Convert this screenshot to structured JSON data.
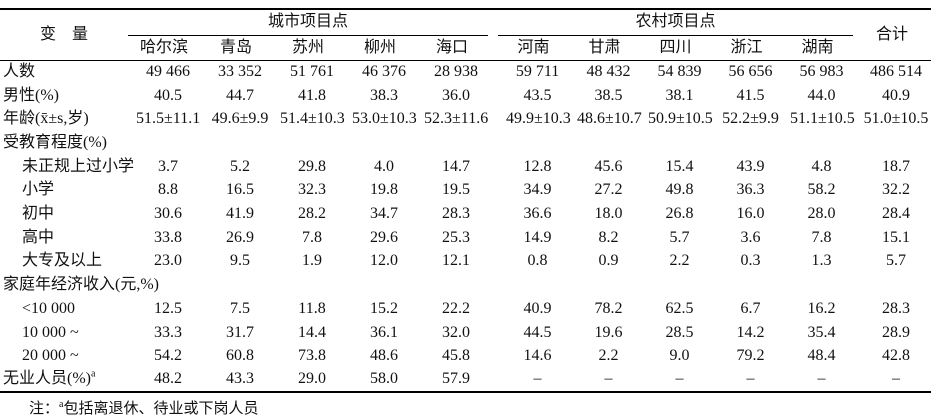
{
  "colors": {
    "background": "#ffffff",
    "text": "#111111",
    "rule": "#000000"
  },
  "table": {
    "header": {
      "variable_label": "变　量",
      "city_group": "城市项目点",
      "rural_group": "农村项目点",
      "total_label": "合计",
      "city_cols": [
        "哈尔滨",
        "青岛",
        "苏州",
        "柳州",
        "海口"
      ],
      "rural_cols": [
        "河南",
        "甘肃",
        "四川",
        "浙江",
        "湖南"
      ]
    },
    "rows": [
      {
        "label": "人数",
        "indent": false,
        "values": [
          "49 466",
          "33 352",
          "51 761",
          "46 376",
          "28 938",
          "59 711",
          "48 432",
          "54 839",
          "56 656",
          "56 983",
          "486 514"
        ]
      },
      {
        "label": "男性(%)",
        "indent": false,
        "values": [
          "40.5",
          "44.7",
          "41.8",
          "38.3",
          "36.0",
          "43.5",
          "38.5",
          "38.1",
          "41.5",
          "44.0",
          "40.9"
        ]
      },
      {
        "label": "年龄(x̄±s,岁)",
        "indent": false,
        "values": [
          "51.5±11.1",
          "49.6±9.9",
          "51.4±10.3",
          "53.0±10.3",
          "52.3±11.6",
          "49.9±10.3",
          "48.6±10.7",
          "50.9±10.5",
          "52.2±9.9",
          "51.1±10.5",
          "51.0±10.5"
        ]
      },
      {
        "label": "受教育程度(%)",
        "indent": false,
        "section": true,
        "values": []
      },
      {
        "label": "未正规上过小学",
        "indent": true,
        "values": [
          "3.7",
          "5.2",
          "29.8",
          "4.0",
          "14.7",
          "12.8",
          "45.6",
          "15.4",
          "43.9",
          "4.8",
          "18.7"
        ]
      },
      {
        "label": "小学",
        "indent": true,
        "values": [
          "8.8",
          "16.5",
          "32.3",
          "19.8",
          "19.5",
          "34.9",
          "27.2",
          "49.8",
          "36.3",
          "58.2",
          "32.2"
        ]
      },
      {
        "label": "初中",
        "indent": true,
        "values": [
          "30.6",
          "41.9",
          "28.2",
          "34.7",
          "28.3",
          "36.6",
          "18.0",
          "26.8",
          "16.0",
          "28.0",
          "28.4"
        ]
      },
      {
        "label": "高中",
        "indent": true,
        "values": [
          "33.8",
          "26.9",
          "7.8",
          "29.6",
          "25.3",
          "14.9",
          "8.2",
          "5.7",
          "3.6",
          "7.8",
          "15.1"
        ]
      },
      {
        "label": "大专及以上",
        "indent": true,
        "values": [
          "23.0",
          "9.5",
          "1.9",
          "12.0",
          "12.1",
          "0.8",
          "0.9",
          "2.2",
          "0.3",
          "1.3",
          "5.7"
        ]
      },
      {
        "label": "家庭年经济收入(元,%)",
        "indent": false,
        "section": true,
        "values": []
      },
      {
        "label": "<10 000",
        "indent": true,
        "values": [
          "12.5",
          "7.5",
          "11.8",
          "15.2",
          "22.2",
          "40.9",
          "78.2",
          "62.5",
          "6.7",
          "16.2",
          "28.3"
        ]
      },
      {
        "label": "10 000 ~",
        "indent": true,
        "values": [
          "33.3",
          "31.7",
          "14.4",
          "36.1",
          "32.0",
          "44.5",
          "19.6",
          "28.5",
          "14.2",
          "35.4",
          "28.9"
        ]
      },
      {
        "label": "20 000 ~",
        "indent": true,
        "values": [
          "54.2",
          "60.8",
          "73.8",
          "48.6",
          "45.8",
          "14.6",
          "2.2",
          "9.0",
          "79.2",
          "48.4",
          "42.8"
        ]
      },
      {
        "label": "无业人员(%)",
        "sup": "a",
        "indent": false,
        "values": [
          "48.2",
          "43.3",
          "29.0",
          "58.0",
          "57.9",
          "–",
          "–",
          "–",
          "–",
          "–",
          "–"
        ]
      }
    ],
    "footnote": {
      "prefix": "注：",
      "marker": "a",
      "text": "包括离退休、待业或下岗人员"
    }
  }
}
